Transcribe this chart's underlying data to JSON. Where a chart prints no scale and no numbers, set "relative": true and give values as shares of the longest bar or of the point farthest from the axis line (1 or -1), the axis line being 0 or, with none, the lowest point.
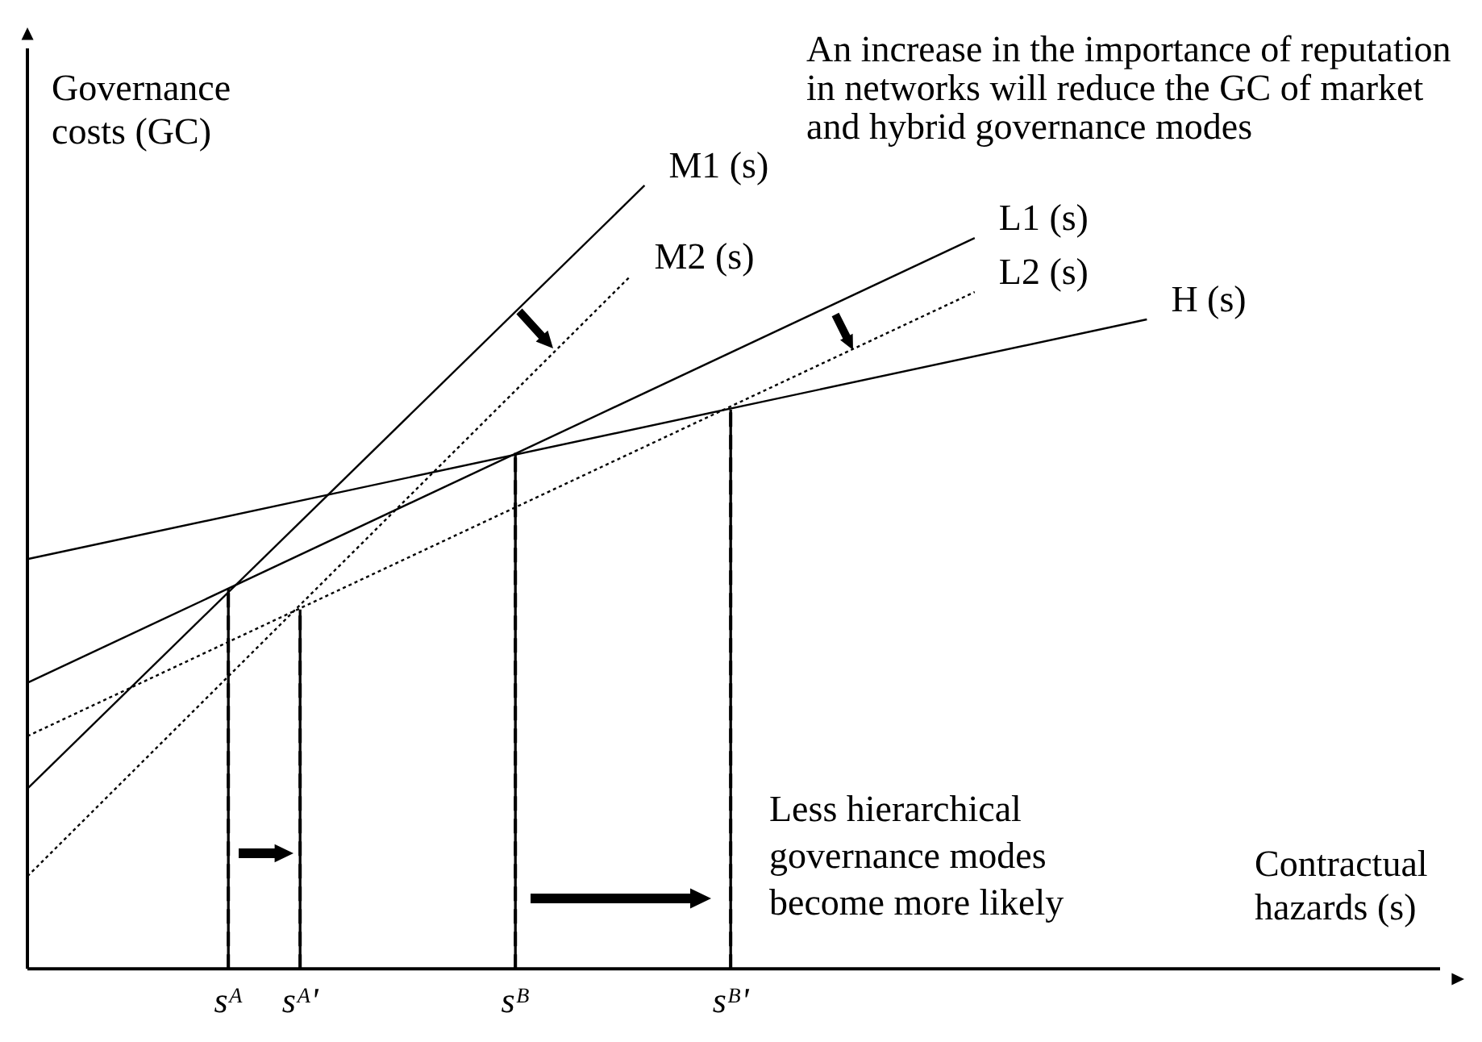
{
  "chart_data": {
    "type": "line",
    "relative": true,
    "xlabel": "Contractual hazards (s)",
    "ylabel": "Governance costs (GC)",
    "annotations": [
      "An increase in the importance of reputation in networks will reduce the GC of market and hybrid governance modes",
      "Less hierarchical governance modes become more likely"
    ],
    "categories": [
      null,
      null,
      null,
      null,
      null,
      null,
      null,
      null,
      null,
      null,
      null,
      null,
      null,
      null,
      "sᴬ",
      null,
      null,
      null,
      null,
      "sᴬ'",
      null,
      null,
      null,
      null,
      null,
      null,
      null,
      null,
      null,
      null,
      null,
      null,
      null,
      null,
      "sᴮ",
      null,
      null,
      null,
      null,
      null,
      null,
      null,
      null,
      null,
      null,
      null,
      null,
      null,
      null,
      "sᴮ'",
      null,
      null,
      null,
      null,
      null,
      null,
      null,
      null,
      null,
      null,
      null,
      null,
      null,
      null,
      null,
      null,
      null,
      null,
      null,
      null,
      null,
      null,
      null,
      null,
      null,
      null,
      null,
      null,
      null,
      null,
      null,
      null,
      null,
      null,
      null,
      null,
      null,
      null,
      null,
      null,
      null,
      null,
      null,
      null,
      null,
      null,
      null,
      null,
      null,
      null,
      null
    ],
    "grid": false,
    "legend": false,
    "marker": "none",
    "series": [
      {
        "name": "M1 (s)",
        "color": "#000000",
        "line_style": "solid",
        "values": [
          0.23,
          null,
          null,
          null,
          null,
          null,
          null,
          null,
          null,
          null,
          null,
          null,
          null,
          null,
          null,
          null,
          null,
          null,
          null,
          null,
          null,
          null,
          null,
          null,
          null,
          null,
          null,
          null,
          null,
          null,
          null,
          null,
          null,
          null,
          null,
          null,
          null,
          null,
          null,
          null,
          null,
          null,
          null,
          1,
          null,
          null,
          null,
          null,
          null,
          null,
          null,
          null,
          null,
          null,
          null,
          null,
          null,
          null,
          null,
          null,
          null,
          null,
          null,
          null,
          null,
          null,
          null,
          null,
          null,
          null,
          null,
          null,
          null,
          null,
          null,
          null,
          null,
          null,
          null,
          null,
          null,
          null,
          null,
          null,
          null,
          null,
          null,
          null,
          null,
          null,
          null,
          null,
          null,
          null,
          null,
          null,
          null,
          null,
          null,
          null,
          null
        ]
      },
      {
        "name": "M2 (s)",
        "color": "#000000",
        "line_style": "dotted",
        "values": [
          0.118,
          null,
          null,
          null,
          null,
          null,
          null,
          null,
          null,
          null,
          null,
          null,
          null,
          null,
          null,
          null,
          null,
          null,
          null,
          null,
          null,
          null,
          null,
          null,
          null,
          null,
          null,
          null,
          null,
          null,
          null,
          null,
          null,
          null,
          null,
          null,
          null,
          null,
          null,
          null,
          null,
          null,
          0.884,
          null,
          null,
          null,
          null,
          null,
          null,
          null,
          null,
          null,
          null,
          null,
          null,
          null,
          null,
          null,
          null,
          null,
          null,
          null,
          null,
          null,
          null,
          null,
          null,
          null,
          null,
          null,
          null,
          null,
          null,
          null,
          null,
          null,
          null,
          null,
          null,
          null,
          null,
          null,
          null,
          null,
          null,
          null,
          null,
          null,
          null,
          null,
          null,
          null,
          null,
          null,
          null,
          null,
          null,
          null,
          null,
          null,
          null
        ]
      },
      {
        "name": "L1 (s)",
        "color": "#000000",
        "line_style": "solid",
        "values": [
          0.365,
          null,
          null,
          null,
          null,
          null,
          null,
          null,
          null,
          null,
          null,
          null,
          null,
          null,
          null,
          null,
          null,
          null,
          null,
          null,
          null,
          null,
          null,
          null,
          null,
          null,
          null,
          null,
          null,
          null,
          null,
          null,
          null,
          null,
          null,
          null,
          null,
          null,
          null,
          null,
          null,
          null,
          null,
          null,
          null,
          null,
          null,
          null,
          null,
          null,
          null,
          null,
          null,
          null,
          null,
          null,
          null,
          null,
          null,
          null,
          null,
          null,
          null,
          null,
          null,
          null,
          0.933,
          null,
          null,
          null,
          null,
          null,
          null,
          null,
          null,
          null,
          null,
          null,
          null,
          null,
          null,
          null,
          null,
          null,
          null,
          null,
          null,
          null,
          null,
          null,
          null,
          null,
          null,
          null,
          null,
          null,
          null,
          null,
          null,
          null,
          null
        ]
      },
      {
        "name": "L2 (s)",
        "color": "#000000",
        "line_style": "dotted",
        "values": [
          0.297,
          null,
          null,
          null,
          null,
          null,
          null,
          null,
          null,
          null,
          null,
          null,
          null,
          null,
          null,
          null,
          null,
          null,
          null,
          null,
          null,
          null,
          null,
          null,
          null,
          null,
          null,
          null,
          null,
          null,
          null,
          null,
          null,
          null,
          null,
          null,
          null,
          null,
          null,
          null,
          null,
          null,
          null,
          null,
          null,
          null,
          null,
          null,
          null,
          null,
          null,
          null,
          null,
          null,
          null,
          null,
          null,
          null,
          null,
          null,
          null,
          null,
          null,
          null,
          null,
          null,
          0.864,
          null,
          null,
          null,
          null,
          null,
          null,
          null,
          null,
          null,
          null,
          null,
          null,
          null,
          null,
          null,
          null,
          null,
          null,
          null,
          null,
          null,
          null,
          null,
          null,
          null,
          null,
          null,
          null,
          null,
          null,
          null,
          null,
          null,
          null
        ]
      },
      {
        "name": "H (s)",
        "color": "#000000",
        "line_style": "solid",
        "values": [
          0.523,
          null,
          null,
          null,
          null,
          null,
          null,
          null,
          null,
          null,
          null,
          null,
          null,
          null,
          null,
          null,
          null,
          null,
          null,
          null,
          null,
          null,
          null,
          null,
          null,
          null,
          null,
          null,
          null,
          null,
          null,
          null,
          null,
          null,
          null,
          null,
          null,
          null,
          null,
          null,
          null,
          null,
          null,
          null,
          null,
          null,
          null,
          null,
          null,
          null,
          null,
          null,
          null,
          null,
          null,
          null,
          null,
          null,
          null,
          null,
          null,
          null,
          null,
          null,
          null,
          null,
          null,
          null,
          null,
          null,
          null,
          null,
          null,
          null,
          null,
          null,
          null,
          null,
          0.829,
          null,
          null,
          null,
          null,
          null,
          null,
          null,
          null,
          null,
          null,
          null,
          null,
          null,
          null,
          null,
          null,
          null,
          null,
          null,
          null,
          null,
          null
        ]
      },
      {
        "type": "bar",
        "color": "#000000",
        "line_style": "dashed",
        "values": [
          null,
          null,
          null,
          null,
          null,
          null,
          null,
          null,
          null,
          null,
          null,
          null,
          null,
          null,
          0.485,
          null,
          null,
          null,
          null,
          0.458,
          null,
          null,
          null,
          null,
          null,
          null,
          null,
          null,
          null,
          null,
          null,
          null,
          null,
          null,
          0.658,
          null,
          null,
          null,
          null,
          null,
          null,
          null,
          null,
          null,
          null,
          null,
          null,
          null,
          null,
          0.713,
          null,
          null,
          null,
          null,
          null,
          null,
          null,
          null,
          null,
          null,
          null,
          null,
          null,
          null,
          null,
          null,
          null,
          null,
          null,
          null,
          null,
          null,
          null,
          null,
          null,
          null,
          null,
          null,
          null,
          null,
          null,
          null,
          null,
          null,
          null,
          null,
          null,
          null,
          null,
          null,
          null,
          null,
          null,
          null,
          null,
          null,
          null,
          null,
          null,
          null,
          null
        ]
      }
    ]
  }
}
